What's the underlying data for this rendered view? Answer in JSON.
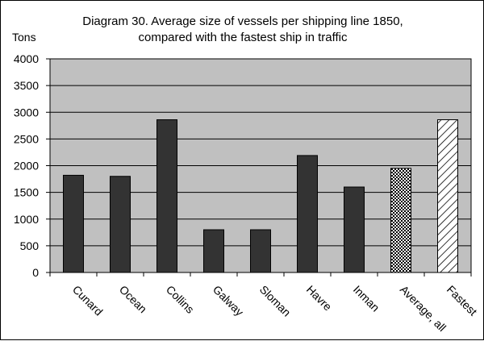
{
  "chart_data": {
    "type": "bar",
    "title_lines": [
      "Diagram 30. Average size of vessels per shipping line 1850,",
      "compared with the fastest ship in traffic"
    ],
    "ylabel": "Tons",
    "xlabel": "",
    "ylim": [
      0,
      4000
    ],
    "yticks": [
      0,
      500,
      1000,
      1500,
      2000,
      2500,
      3000,
      3500,
      4000
    ],
    "grid": true,
    "legend": "none",
    "categories": [
      "Cunard",
      "Ocean",
      "Collins",
      "Galway",
      "Sloman",
      "Havre",
      "Inman",
      "Average, all",
      "Fastest"
    ],
    "values": [
      1820,
      1800,
      2860,
      800,
      800,
      2190,
      1600,
      1950,
      2860
    ],
    "bar_fills": [
      "solid",
      "solid",
      "solid",
      "solid",
      "solid",
      "solid",
      "solid",
      "checker",
      "hatch"
    ],
    "colors": {
      "plot_bg": "#c0c0c0",
      "bar": "#333333",
      "grid": "#000000"
    }
  }
}
